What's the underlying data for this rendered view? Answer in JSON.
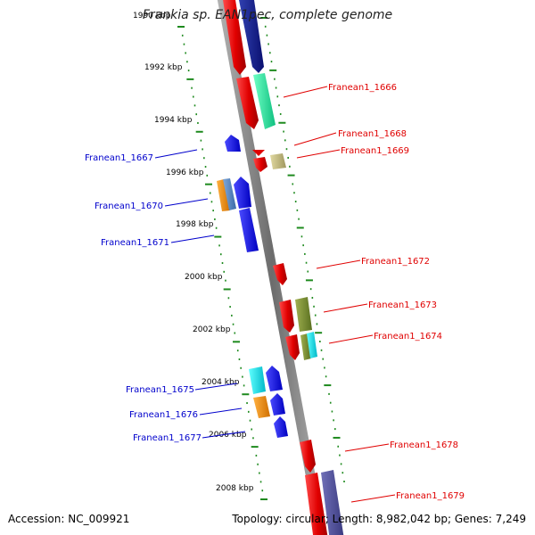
{
  "header": {
    "title": "Frankia sp. EAN1pec, complete genome"
  },
  "footer": {
    "accession": "Accession: NC_009921",
    "summary": "Topology: circular; Length: 8,982,042 bp; Genes: 7,249"
  },
  "colors": {
    "backbone": "#8a8a8a",
    "ticks": "#1e8a1e",
    "label_red": "#e00000",
    "label_blue": "#0000cc"
  },
  "ruler": [
    "1990 kbp",
    "1992 kbp",
    "1994 kbp",
    "1996 kbp",
    "1998 kbp",
    "2000 kbp",
    "2002 kbp",
    "2004 kbp",
    "2006 kbp",
    "2008 kbp"
  ],
  "gene_labels_right": [
    "Franean1_1666",
    "Franean1_1668",
    "Franean1_1669",
    "Franean1_1672",
    "Franean1_1673",
    "Franean1_1674",
    "Franean1_1678",
    "Franean1_1679"
  ],
  "gene_labels_left": [
    "Franean1_1667",
    "Franean1_1670",
    "Franean1_1671",
    "Franean1_1675",
    "Franean1_1676",
    "Franean1_1677"
  ]
}
